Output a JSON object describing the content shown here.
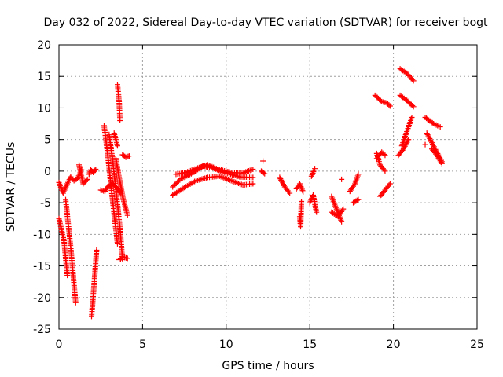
{
  "chart_data": {
    "type": "scatter",
    "title": "Day 032 of 2022, Sidereal Day-to-day VTEC variation (SDTVAR) for receiver bogt",
    "xlabel": "GPS time / hours",
    "ylabel": "SDTVAR / TECUs",
    "xlim": [
      0,
      25
    ],
    "ylim": [
      -25,
      20
    ],
    "x_ticks": [
      0,
      5,
      10,
      15,
      20,
      25
    ],
    "y_ticks": [
      -25,
      -20,
      -15,
      -10,
      -5,
      0,
      5,
      10,
      15,
      20
    ],
    "grid": true,
    "marker": "+",
    "color": "#ff0000",
    "segments": [
      {
        "x": [
          0.0,
          0.3,
          0.5
        ],
        "y": [
          -7.5,
          -11,
          -16.5
        ]
      },
      {
        "x": [
          0.4,
          0.7,
          1.0
        ],
        "y": [
          -4.5,
          -12,
          -20.8
        ]
      },
      {
        "x": [
          0.0,
          0.25,
          0.5,
          0.7,
          0.9,
          1.1,
          1.35
        ],
        "y": [
          -1.8,
          -3.5,
          -2.0,
          -0.9,
          -1.5,
          -1.2,
          0.2
        ]
      },
      {
        "x": [
          1.2,
          1.45,
          1.7
        ],
        "y": [
          1.0,
          -2.0,
          -1.3
        ]
      },
      {
        "x": [
          1.8,
          1.9,
          2.05,
          2.2
        ],
        "y": [
          -0.5,
          0.2,
          -0.2,
          0.3
        ]
      },
      {
        "x": [
          1.95,
          2.1,
          2.25
        ],
        "y": [
          -23,
          -18,
          -12.5
        ]
      },
      {
        "x": [
          2.5,
          2.75,
          2.9
        ],
        "y": [
          -3.0,
          -3.2,
          -2.5
        ]
      },
      {
        "x": [
          2.7,
          2.9,
          3.1,
          3.35,
          3.5
        ],
        "y": [
          7.2,
          3.0,
          -2.0,
          -8.0,
          -11.5
        ]
      },
      {
        "x": [
          3.0,
          3.2,
          3.45,
          3.65,
          3.8
        ],
        "y": [
          5.8,
          2.0,
          -4.0,
          -9.0,
          -14.0
        ]
      },
      {
        "x": [
          3.4,
          3.6,
          3.85,
          4.1
        ],
        "y": [
          2.0,
          -1.0,
          -4.5,
          -7.0
        ]
      },
      {
        "x": [
          2.9,
          3.2,
          3.5,
          3.7
        ],
        "y": [
          -2.5,
          -2.0,
          -2.8,
          -3.5
        ]
      },
      {
        "x": [
          3.6,
          3.85,
          4.1
        ],
        "y": [
          -14.0,
          -13.6,
          -13.8
        ]
      },
      {
        "x": [
          3.8,
          4.0,
          4.2
        ],
        "y": [
          2.6,
          2.2,
          2.4
        ]
      },
      {
        "x": [
          3.5,
          3.6,
          3.65
        ],
        "y": [
          13.7,
          11.0,
          8.0
        ]
      },
      {
        "x": [
          3.3,
          3.5
        ],
        "y": [
          6.0,
          4.0
        ]
      },
      {
        "x": [
          6.8,
          7.5,
          8.2,
          8.9,
          9.6,
          10.3,
          11.0,
          11.6
        ],
        "y": [
          -3.8,
          -2.6,
          -1.5,
          -1.0,
          -0.8,
          -1.5,
          -2.2,
          -2.0
        ]
      },
      {
        "x": [
          6.8,
          7.3,
          8.0,
          8.6,
          9.2,
          10.0,
          10.8,
          11.6
        ],
        "y": [
          -2.5,
          -1.2,
          -0.3,
          0.8,
          0.5,
          -0.3,
          -0.9,
          -1.0
        ]
      },
      {
        "x": [
          7.0,
          7.6,
          8.3,
          8.9,
          9.5,
          10.3,
          11.0,
          11.6
        ],
        "y": [
          -0.5,
          -0.2,
          0.5,
          1.0,
          0.3,
          -0.2,
          -0.3,
          0.3
        ]
      },
      {
        "x": [
          12.2
        ],
        "y": [
          1.6
        ]
      },
      {
        "x": [
          12.1,
          12.3
        ],
        "y": [
          0.0,
          -0.4
        ]
      },
      {
        "x": [
          13.2,
          13.5,
          13.8
        ],
        "y": [
          -1.0,
          -2.5,
          -3.5
        ]
      },
      {
        "x": [
          14.2,
          14.4,
          14.6
        ],
        "y": [
          -2.8,
          -2.0,
          -3.3
        ]
      },
      {
        "x": [
          14.4,
          14.45,
          14.5
        ],
        "y": [
          -7.2,
          -8.8,
          -4.8
        ]
      },
      {
        "x": [
          15.0,
          15.2,
          15.4
        ],
        "y": [
          -5.0,
          -3.8,
          -6.5
        ]
      },
      {
        "x": [
          15.1,
          15.3
        ],
        "y": [
          -0.8,
          0.4
        ]
      },
      {
        "x": [
          16.3,
          16.6,
          16.9
        ],
        "y": [
          -4.0,
          -6.0,
          -8.0
        ]
      },
      {
        "x": [
          16.3,
          16.7,
          17.0
        ],
        "y": [
          -6.5,
          -7.2,
          -6.0
        ]
      },
      {
        "x": [
          16.9
        ],
        "y": [
          -1.3
        ]
      },
      {
        "x": [
          17.4,
          17.7,
          17.9
        ],
        "y": [
          -3.2,
          -2.0,
          -0.5
        ]
      },
      {
        "x": [
          17.6,
          17.9
        ],
        "y": [
          -5.0,
          -4.5
        ]
      },
      {
        "x": [
          19.0,
          19.3,
          19.5
        ],
        "y": [
          2.0,
          3.0,
          2.5
        ]
      },
      {
        "x": [
          19.0,
          19.2,
          19.5
        ],
        "y": [
          2.8,
          1.0,
          0.0
        ]
      },
      {
        "x": [
          19.2,
          19.5,
          19.8
        ],
        "y": [
          -4.0,
          -3.0,
          -2.0
        ]
      },
      {
        "x": [
          18.9,
          19.3,
          19.6,
          19.8
        ],
        "y": [
          12.0,
          11.0,
          10.8,
          10.3
        ]
      },
      {
        "x": [
          20.4,
          20.8,
          21.2
        ],
        "y": [
          16.2,
          15.5,
          14.3
        ]
      },
      {
        "x": [
          20.4,
          20.8,
          21.2
        ],
        "y": [
          12.0,
          11.2,
          10.2
        ]
      },
      {
        "x": [
          20.5,
          20.7,
          20.9,
          21.1
        ],
        "y": [
          4.0,
          5.5,
          7.0,
          8.5
        ]
      },
      {
        "x": [
          20.3,
          20.6,
          20.9
        ],
        "y": [
          2.5,
          3.5,
          5.0
        ]
      },
      {
        "x": [
          21.9,
          22.4,
          22.8
        ],
        "y": [
          8.5,
          7.5,
          7.0
        ]
      },
      {
        "x": [
          21.9
        ],
        "y": [
          4.2
        ]
      },
      {
        "x": [
          22.0,
          22.3,
          22.6,
          22.9
        ],
        "y": [
          6.0,
          4.5,
          3.0,
          1.5
        ]
      },
      {
        "x": [
          22.3,
          22.6,
          22.9
        ],
        "y": [
          3.5,
          2.5,
          1.2
        ]
      }
    ]
  }
}
